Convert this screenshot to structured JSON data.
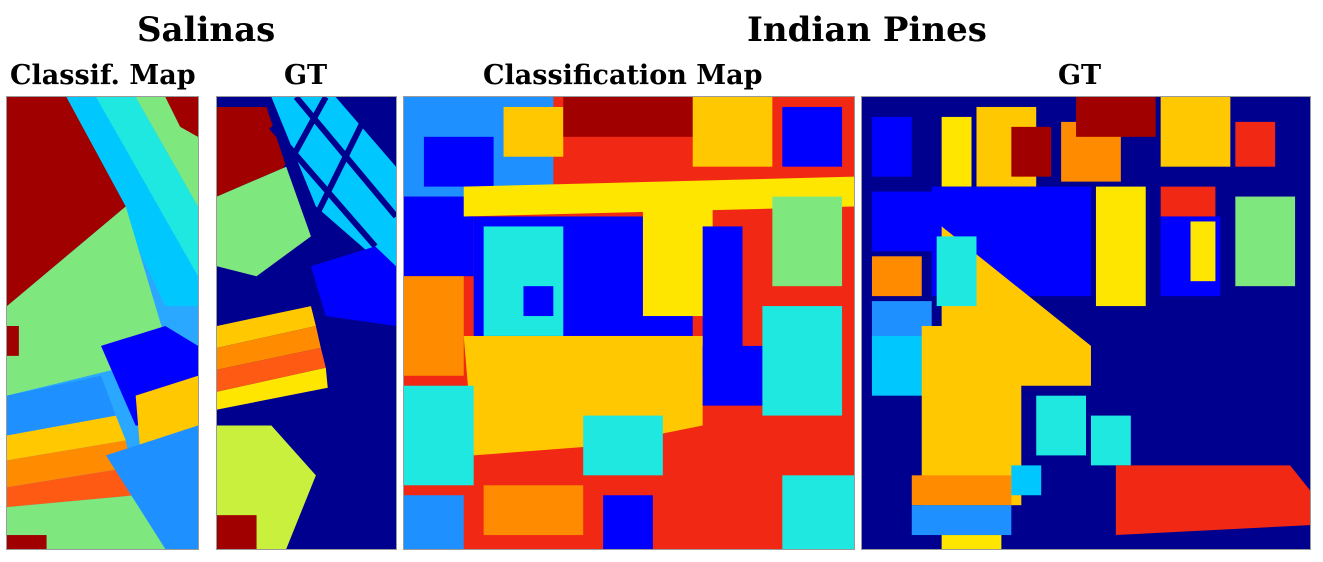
{
  "groups": {
    "salinas": {
      "title": "Salinas"
    },
    "indian_pines": {
      "title": "Indian Pines"
    }
  },
  "panels": {
    "salinas_map": {
      "label": "Classif. Map"
    },
    "salinas_gt": {
      "label": "GT"
    },
    "pines_map": {
      "label": "Classification Map"
    },
    "pines_gt": {
      "label": "GT"
    }
  },
  "palette": {
    "background": "#00008f",
    "blue": "#0000ff",
    "mid_blue": "#0b5cf0",
    "light_blue": "#1e90ff",
    "cyan": "#00c8ff",
    "aqua": "#1ee8e0",
    "light_green": "#7ee87e",
    "yellow_green": "#c8f03c",
    "yellow": "#ffe600",
    "gold": "#ffc800",
    "orange": "#ff8c00",
    "orange_red": "#ff5a14",
    "red": "#f02814",
    "dark_red": "#a00000"
  }
}
